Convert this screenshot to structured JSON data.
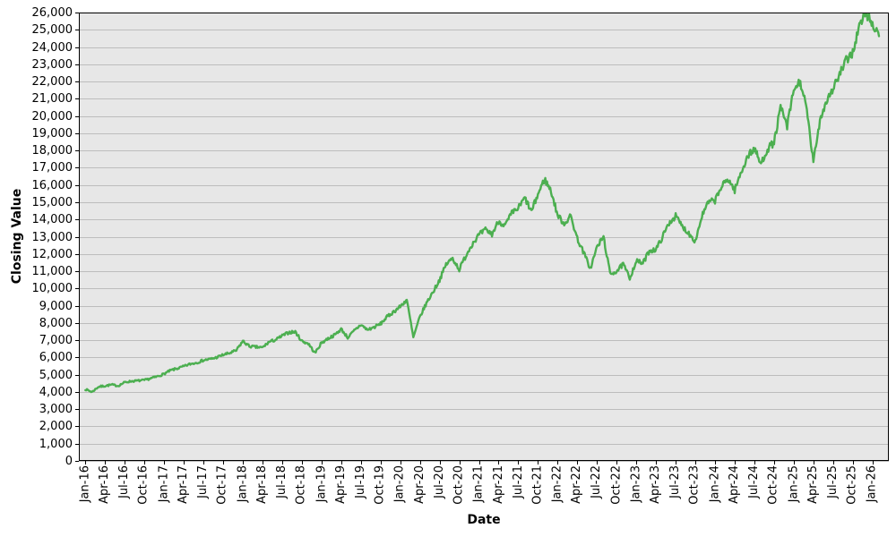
{
  "chart_data": {
    "type": "line",
    "title": "",
    "xlabel": "Date",
    "ylabel": "Closing Value",
    "legend": "none",
    "grid": "horizontal",
    "ylim": [
      0,
      26000
    ],
    "y_tick_values": [
      0,
      1000,
      2000,
      3000,
      4000,
      5000,
      6000,
      7000,
      8000,
      9000,
      10000,
      11000,
      12000,
      13000,
      14000,
      15000,
      16000,
      17000,
      18000,
      19000,
      20000,
      21000,
      22000,
      23000,
      24000,
      25000,
      26000
    ],
    "x_tick_labels": [
      "Jan-16",
      "Apr-16",
      "Jul-16",
      "Oct-16",
      "Jan-17",
      "Apr-17",
      "Jul-17",
      "Oct-17",
      "Jan-18",
      "Apr-18",
      "Jul-18",
      "Oct-18",
      "Jan-19",
      "Apr-19",
      "Jul-19",
      "Oct-19",
      "Jan-20",
      "Apr-20",
      "Jul-20",
      "Oct-20",
      "Jan-21",
      "Apr-21",
      "Jul-21",
      "Oct-21",
      "Jan-22",
      "Apr-22",
      "Jul-22",
      "Oct-22",
      "Jan-23",
      "Apr-23",
      "Jul-23",
      "Oct-23",
      "Jan-24",
      "Apr-24",
      "Jul-24",
      "Oct-24",
      "Jan-25",
      "Apr-25",
      "Jul-25",
      "Oct-25",
      "Jan-26"
    ],
    "x_tick_interval_months": 3,
    "series": [
      {
        "name": "Closing Value",
        "start_month": "2016-01",
        "frequency": "monthly",
        "monthly_values": [
          4150,
          4000,
          4300,
          4350,
          4420,
          4350,
          4560,
          4620,
          4650,
          4680,
          4790,
          4900,
          5050,
          5250,
          5360,
          5480,
          5620,
          5700,
          5840,
          5900,
          6000,
          6150,
          6250,
          6400,
          6950,
          6650,
          6600,
          6570,
          6900,
          7020,
          7250,
          7450,
          7480,
          6950,
          6800,
          6250,
          6850,
          7100,
          7300,
          7650,
          7150,
          7550,
          7900,
          7600,
          7750,
          7950,
          8350,
          8650,
          8950,
          9350,
          7150,
          8350,
          9150,
          9800,
          10500,
          11400,
          11750,
          11100,
          11900,
          12600,
          13100,
          13400,
          13150,
          13900,
          13650,
          14350,
          14650,
          15250,
          14450,
          15450,
          16350,
          15650,
          14250,
          13750,
          14200,
          12900,
          12050,
          11150,
          12400,
          13000,
          10850,
          11000,
          11400,
          10600,
          11600,
          11450,
          12200,
          12250,
          13000,
          13800,
          14200,
          13600,
          13200,
          12750,
          14200,
          15000,
          15100,
          15900,
          16350,
          15700,
          16750,
          17700,
          18100,
          17200,
          18100,
          18450,
          20500,
          19400,
          21500,
          22000,
          20300,
          17300,
          19800,
          20900,
          21600,
          22400,
          23200,
          23700,
          25200,
          26000,
          25300,
          24800
        ]
      }
    ],
    "colors": {
      "line_color": "#4caf50",
      "plot_bg": "#e7e7e7",
      "grid_color": "#bdbdbd",
      "border_color": "#000000",
      "tick_color": "#000000",
      "text_color": "#000000",
      "figure_bg": "#ffffff"
    },
    "noise": {
      "points_per_month": 8,
      "amplitude_frac": 0.012,
      "seed": 7
    }
  }
}
